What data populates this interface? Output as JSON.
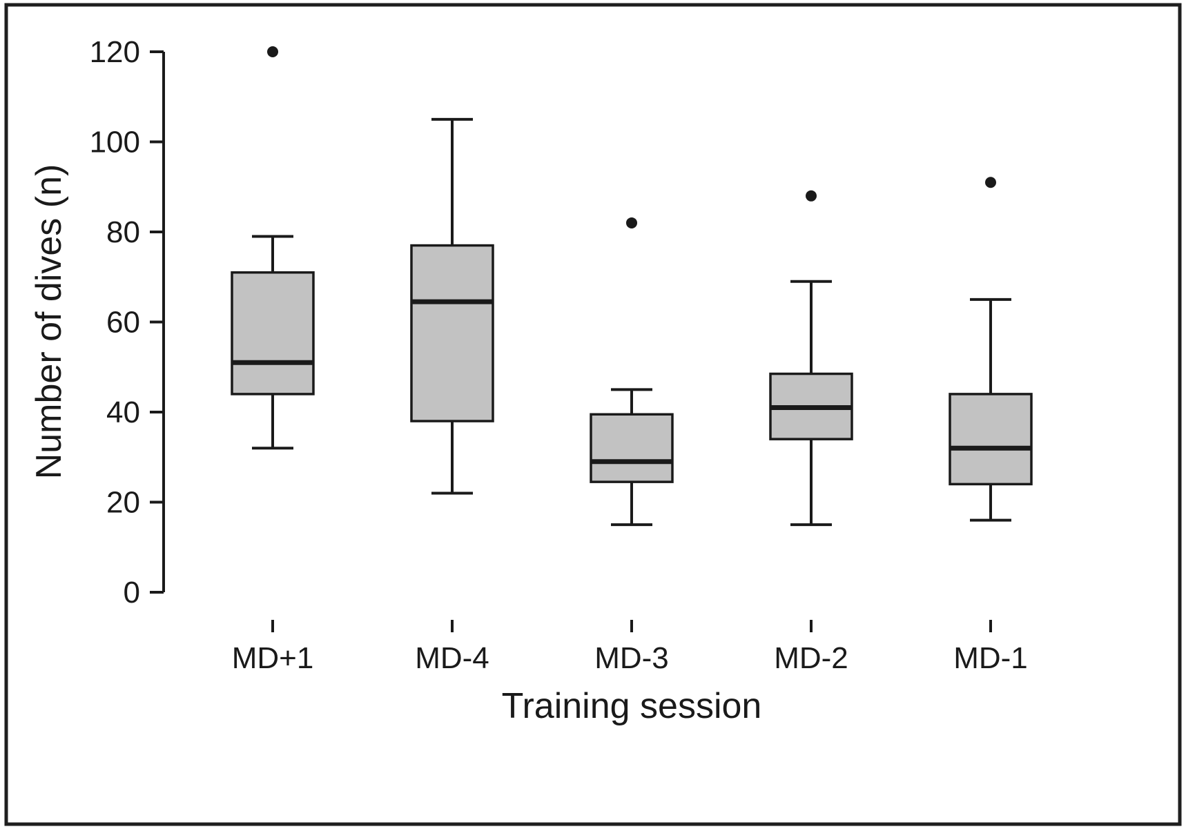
{
  "figure": {
    "y_axis_title": "Number of dives (n)",
    "x_axis_title": "Training session"
  },
  "chart_data": {
    "type": "boxplot",
    "title": "",
    "xlabel": "Training session",
    "ylabel": "Number of dives (n)",
    "ylim": [
      0,
      120
    ],
    "yticks": [
      0,
      20,
      40,
      60,
      80,
      100,
      120
    ],
    "categories": [
      "MD+1",
      "MD-4",
      "MD-3",
      "MD-2",
      "MD-1"
    ],
    "series": [
      {
        "category": "MD+1",
        "whisker_low": 32,
        "q1": 44,
        "median": 51,
        "q3": 71,
        "whisker_high": 79,
        "outliers": [
          120
        ]
      },
      {
        "category": "MD-4",
        "whisker_low": 22,
        "q1": 38,
        "median": 64.5,
        "q3": 77,
        "whisker_high": 105,
        "outliers": []
      },
      {
        "category": "MD-3",
        "whisker_low": 15,
        "q1": 24.5,
        "median": 29,
        "q3": 39.5,
        "whisker_high": 45,
        "outliers": [
          82
        ]
      },
      {
        "category": "MD-2",
        "whisker_low": 15,
        "q1": 34,
        "median": 41,
        "q3": 48.5,
        "whisker_high": 69,
        "outliers": [
          88
        ]
      },
      {
        "category": "MD-1",
        "whisker_low": 16,
        "q1": 24,
        "median": 32,
        "q3": 44,
        "whisker_high": 65,
        "outliers": [
          91
        ]
      }
    ],
    "grid": false,
    "legend": false,
    "box_fill": "#c2c2c2",
    "stroke_color": "#1a1a1a"
  }
}
